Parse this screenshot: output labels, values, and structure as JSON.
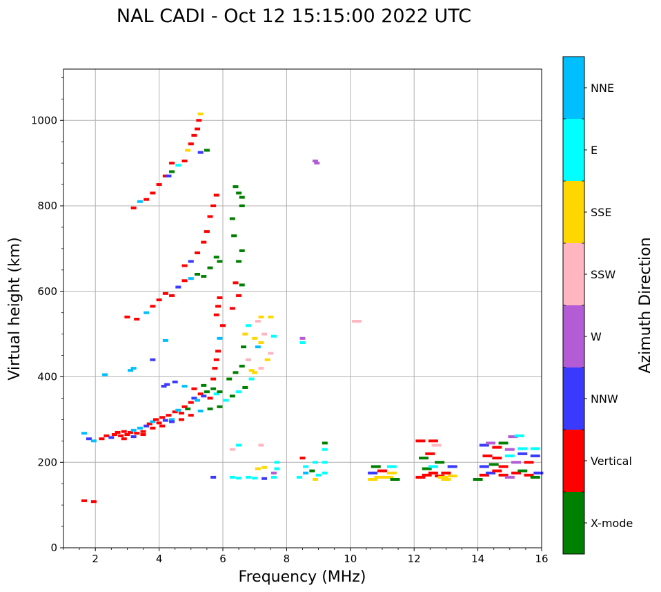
{
  "chart_data": {
    "type": "scatter",
    "title": "NAL CADI - Oct 12 15:15:00 2022 UTC",
    "xlabel": "Frequency (MHz)",
    "ylabel": "Virtual height (km)",
    "xlim": [
      1,
      16
    ],
    "ylim": [
      0,
      1120
    ],
    "xticks": [
      2,
      4,
      6,
      8,
      10,
      12,
      14,
      16
    ],
    "yticks": [
      0,
      200,
      400,
      600,
      800,
      1000
    ],
    "grid": true,
    "colorbar": {
      "label": "Azimuth Direction",
      "position": "right",
      "categories": [
        {
          "name": "X-mode",
          "color": "#008000"
        },
        {
          "name": "Vertical",
          "color": "#ff0000"
        },
        {
          "name": "NNW",
          "color": "#3a3aff"
        },
        {
          "name": "W",
          "color": "#b45cd6"
        },
        {
          "name": "SSW",
          "color": "#ffb6c1"
        },
        {
          "name": "SSE",
          "color": "#ffd700"
        },
        {
          "name": "E",
          "color": "#00ffff"
        },
        {
          "name": "NNE",
          "color": "#00bfff"
        }
      ]
    },
    "points": [
      [
        1.65,
        110,
        1
      ],
      [
        1.95,
        108,
        1
      ],
      [
        1.65,
        268,
        7
      ],
      [
        1.8,
        255,
        2
      ],
      [
        1.95,
        250,
        7
      ],
      [
        2.2,
        255,
        1
      ],
      [
        2.35,
        262,
        1
      ],
      [
        2.5,
        258,
        2
      ],
      [
        2.6,
        265,
        1
      ],
      [
        2.7,
        270,
        1
      ],
      [
        2.8,
        262,
        1
      ],
      [
        2.9,
        272,
        1
      ],
      [
        3.0,
        265,
        1
      ],
      [
        3.1,
        270,
        1
      ],
      [
        3.2,
        275,
        7
      ],
      [
        3.3,
        268,
        1
      ],
      [
        3.4,
        280,
        7
      ],
      [
        3.5,
        272,
        1
      ],
      [
        3.6,
        285,
        2
      ],
      [
        3.7,
        290,
        1
      ],
      [
        3.8,
        295,
        7
      ],
      [
        3.9,
        300,
        1
      ],
      [
        4.0,
        292,
        1
      ],
      [
        4.1,
        305,
        1
      ],
      [
        4.2,
        298,
        2
      ],
      [
        4.3,
        310,
        1
      ],
      [
        4.4,
        300,
        7
      ],
      [
        4.5,
        318,
        1
      ],
      [
        4.6,
        322,
        7
      ],
      [
        4.7,
        315,
        1
      ],
      [
        4.8,
        330,
        1
      ],
      [
        4.9,
        325,
        0
      ],
      [
        5.0,
        340,
        1
      ],
      [
        5.1,
        350,
        2
      ],
      [
        5.2,
        345,
        7
      ],
      [
        5.3,
        360,
        1
      ],
      [
        5.4,
        355,
        2
      ],
      [
        5.5,
        365,
        0
      ],
      [
        5.6,
        350,
        1
      ],
      [
        5.7,
        372,
        0
      ],
      [
        5.8,
        360,
        6
      ],
      [
        5.9,
        365,
        0
      ],
      [
        2.9,
        255,
        1
      ],
      [
        3.2,
        260,
        2
      ],
      [
        3.5,
        265,
        1
      ],
      [
        3.8,
        280,
        1
      ],
      [
        4.1,
        285,
        1
      ],
      [
        4.4,
        295,
        2
      ],
      [
        4.7,
        300,
        1
      ],
      [
        5.0,
        310,
        1
      ],
      [
        5.3,
        320,
        7
      ],
      [
        5.6,
        325,
        0
      ],
      [
        5.9,
        330,
        0
      ],
      [
        6.1,
        345,
        6
      ],
      [
        6.3,
        355,
        0
      ],
      [
        6.5,
        365,
        6
      ],
      [
        6.7,
        375,
        0
      ],
      [
        6.9,
        395,
        6
      ],
      [
        4.15,
        378,
        2
      ],
      [
        4.25,
        382,
        2
      ],
      [
        4.5,
        388,
        2
      ],
      [
        4.8,
        378,
        7
      ],
      [
        5.1,
        372,
        1
      ],
      [
        5.4,
        380,
        0
      ],
      [
        6.2,
        395,
        0
      ],
      [
        6.4,
        410,
        0
      ],
      [
        6.6,
        425,
        0
      ],
      [
        6.8,
        440,
        6
      ],
      [
        2.3,
        405,
        7
      ],
      [
        3.1,
        415,
        7
      ],
      [
        3.2,
        420,
        7
      ],
      [
        3.8,
        440,
        2
      ],
      [
        4.2,
        485,
        7
      ],
      [
        5.7,
        395,
        1
      ],
      [
        5.75,
        420,
        1
      ],
      [
        5.8,
        440,
        1
      ],
      [
        5.85,
        460,
        1
      ],
      [
        5.9,
        490,
        7
      ],
      [
        6.0,
        520,
        1
      ],
      [
        5.8,
        545,
        1
      ],
      [
        5.85,
        565,
        1
      ],
      [
        5.9,
        585,
        1
      ],
      [
        6.3,
        560,
        1
      ],
      [
        6.5,
        590,
        1
      ],
      [
        6.4,
        620,
        1
      ],
      [
        6.6,
        615,
        0
      ],
      [
        6.65,
        470,
        0
      ],
      [
        6.7,
        500,
        5
      ],
      [
        6.8,
        520,
        6
      ],
      [
        7.0,
        490,
        5
      ],
      [
        7.1,
        470,
        7
      ],
      [
        7.2,
        480,
        5
      ],
      [
        7.3,
        500,
        4
      ],
      [
        7.1,
        530,
        4
      ],
      [
        7.2,
        540,
        5
      ],
      [
        7.5,
        540,
        5
      ],
      [
        7.6,
        495,
        6
      ],
      [
        7.5,
        455,
        4
      ],
      [
        7.4,
        440,
        5
      ],
      [
        7.2,
        420,
        4
      ],
      [
        7.0,
        410,
        5
      ],
      [
        6.8,
        440,
        4
      ],
      [
        6.9,
        415,
        5
      ],
      [
        3.0,
        540,
        1
      ],
      [
        3.3,
        535,
        1
      ],
      [
        3.6,
        550,
        7
      ],
      [
        3.8,
        565,
        1
      ],
      [
        4.0,
        580,
        1
      ],
      [
        4.2,
        595,
        1
      ],
      [
        4.4,
        590,
        1
      ],
      [
        4.6,
        610,
        2
      ],
      [
        4.8,
        625,
        1
      ],
      [
        5.0,
        630,
        7
      ],
      [
        5.2,
        640,
        0
      ],
      [
        5.4,
        635,
        0
      ],
      [
        5.6,
        655,
        0
      ],
      [
        5.8,
        680,
        0
      ],
      [
        5.9,
        670,
        0
      ],
      [
        4.8,
        660,
        1
      ],
      [
        5.0,
        670,
        2
      ],
      [
        5.2,
        690,
        1
      ],
      [
        5.4,
        715,
        1
      ],
      [
        5.5,
        740,
        1
      ],
      [
        5.6,
        775,
        1
      ],
      [
        5.7,
        800,
        1
      ],
      [
        5.8,
        825,
        1
      ],
      [
        6.3,
        770,
        0
      ],
      [
        6.35,
        730,
        0
      ],
      [
        6.5,
        830,
        0
      ],
      [
        6.4,
        845,
        0
      ],
      [
        6.6,
        820,
        0
      ],
      [
        6.6,
        800,
        0
      ],
      [
        6.6,
        695,
        0
      ],
      [
        6.5,
        670,
        0
      ],
      [
        3.2,
        795,
        1
      ],
      [
        3.4,
        810,
        7
      ],
      [
        3.6,
        815,
        1
      ],
      [
        3.8,
        830,
        1
      ],
      [
        4.0,
        850,
        1
      ],
      [
        4.2,
        870,
        1
      ],
      [
        4.4,
        880,
        0
      ],
      [
        4.6,
        895,
        6
      ],
      [
        4.8,
        905,
        1
      ],
      [
        4.9,
        930,
        5
      ],
      [
        5.0,
        945,
        1
      ],
      [
        5.1,
        965,
        1
      ],
      [
        5.2,
        980,
        1
      ],
      [
        5.25,
        1000,
        1
      ],
      [
        5.3,
        1015,
        5
      ],
      [
        5.5,
        930,
        0
      ],
      [
        5.3,
        925,
        2
      ],
      [
        4.4,
        900,
        1
      ],
      [
        4.3,
        870,
        2
      ],
      [
        8.9,
        905,
        3
      ],
      [
        8.95,
        900,
        3
      ],
      [
        10.2,
        530,
        4
      ],
      [
        8.5,
        490,
        3
      ],
      [
        8.5,
        480,
        6
      ],
      [
        5.7,
        165,
        2
      ],
      [
        6.3,
        165,
        6
      ],
      [
        6.5,
        163,
        6
      ],
      [
        6.8,
        165,
        6
      ],
      [
        7.0,
        163,
        6
      ],
      [
        7.3,
        162,
        2
      ],
      [
        7.6,
        165,
        6
      ],
      [
        7.1,
        185,
        5
      ],
      [
        7.3,
        188,
        5
      ],
      [
        7.6,
        175,
        3
      ],
      [
        7.7,
        185,
        6
      ],
      [
        7.7,
        200,
        6
      ],
      [
        7.2,
        240,
        4
      ],
      [
        6.5,
        240,
        6
      ],
      [
        6.3,
        230,
        4
      ],
      [
        8.4,
        165,
        6
      ],
      [
        8.6,
        175,
        7
      ],
      [
        8.8,
        180,
        0
      ],
      [
        8.9,
        160,
        5
      ],
      [
        9.0,
        170,
        6
      ],
      [
        9.2,
        175,
        6
      ],
      [
        9.2,
        200,
        6
      ],
      [
        8.9,
        200,
        6
      ],
      [
        8.5,
        210,
        1
      ],
      [
        9.2,
        230,
        6
      ],
      [
        9.2,
        245,
        0
      ],
      [
        8.6,
        190,
        6
      ],
      [
        10.7,
        160,
        5
      ],
      [
        10.9,
        165,
        5
      ],
      [
        11.2,
        165,
        5
      ],
      [
        11.3,
        175,
        5
      ],
      [
        11.0,
        180,
        1
      ],
      [
        11.3,
        190,
        6
      ],
      [
        10.8,
        190,
        0
      ],
      [
        11.4,
        160,
        0
      ],
      [
        10.7,
        175,
        2
      ],
      [
        12.2,
        165,
        1
      ],
      [
        12.4,
        170,
        1
      ],
      [
        12.6,
        175,
        1
      ],
      [
        12.8,
        168,
        1
      ],
      [
        13.0,
        175,
        1
      ],
      [
        13.2,
        168,
        5
      ],
      [
        12.4,
        185,
        0
      ],
      [
        12.6,
        190,
        6
      ],
      [
        12.8,
        200,
        0
      ],
      [
        12.5,
        220,
        1
      ],
      [
        12.3,
        210,
        0
      ],
      [
        12.2,
        250,
        1
      ],
      [
        12.6,
        250,
        1
      ],
      [
        12.7,
        240,
        4
      ],
      [
        13.2,
        190,
        2
      ],
      [
        12.9,
        165,
        5
      ],
      [
        13.0,
        160,
        5
      ],
      [
        14.0,
        160,
        0
      ],
      [
        14.2,
        170,
        1
      ],
      [
        14.4,
        175,
        2
      ],
      [
        14.6,
        180,
        1
      ],
      [
        14.8,
        170,
        1
      ],
      [
        15.0,
        165,
        3
      ],
      [
        15.2,
        175,
        1
      ],
      [
        15.4,
        180,
        0
      ],
      [
        15.6,
        170,
        1
      ],
      [
        15.8,
        165,
        0
      ],
      [
        15.9,
        175,
        2
      ],
      [
        14.2,
        190,
        2
      ],
      [
        14.5,
        195,
        0
      ],
      [
        14.8,
        190,
        1
      ],
      [
        15.2,
        200,
        3
      ],
      [
        15.6,
        200,
        1
      ],
      [
        15.8,
        215,
        2
      ],
      [
        14.3,
        215,
        1
      ],
      [
        14.6,
        210,
        1
      ],
      [
        15.0,
        215,
        6
      ],
      [
        15.4,
        220,
        2
      ],
      [
        14.2,
        240,
        2
      ],
      [
        14.6,
        235,
        1
      ],
      [
        15.0,
        230,
        3
      ],
      [
        15.4,
        232,
        6
      ],
      [
        15.8,
        232,
        6
      ],
      [
        15.1,
        260,
        3
      ],
      [
        15.3,
        262,
        6
      ],
      [
        14.4,
        245,
        3
      ],
      [
        14.8,
        245,
        0
      ]
    ]
  }
}
